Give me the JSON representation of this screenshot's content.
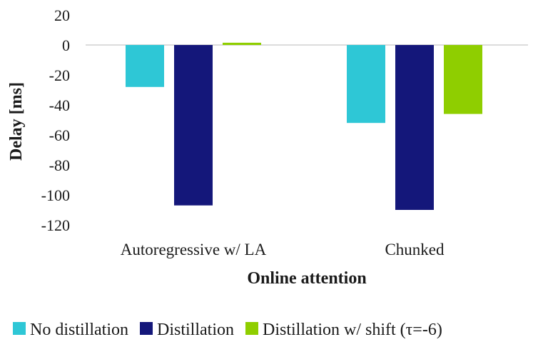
{
  "chart_data": {
    "type": "bar",
    "title": "",
    "xlabel": "Online attention",
    "ylabel": "Delay [ms]",
    "ylim": [
      -120,
      20
    ],
    "yticks": [
      20,
      0,
      -20,
      -40,
      -60,
      -80,
      -100,
      -120
    ],
    "grid": false,
    "categories": [
      "Autoregressive w/ LA",
      "Chunked"
    ],
    "series": [
      {
        "name": "No distillation",
        "color": "#2ec7d6",
        "values": [
          -28,
          -52
        ]
      },
      {
        "name": "Distillation",
        "color": "#14177a",
        "values": [
          -107,
          -110
        ]
      },
      {
        "name": "Distillation w/ shift (τ=-6)",
        "color": "#8fce00",
        "values": [
          1.5,
          -46
        ]
      }
    ],
    "legend_position": "bottom"
  }
}
